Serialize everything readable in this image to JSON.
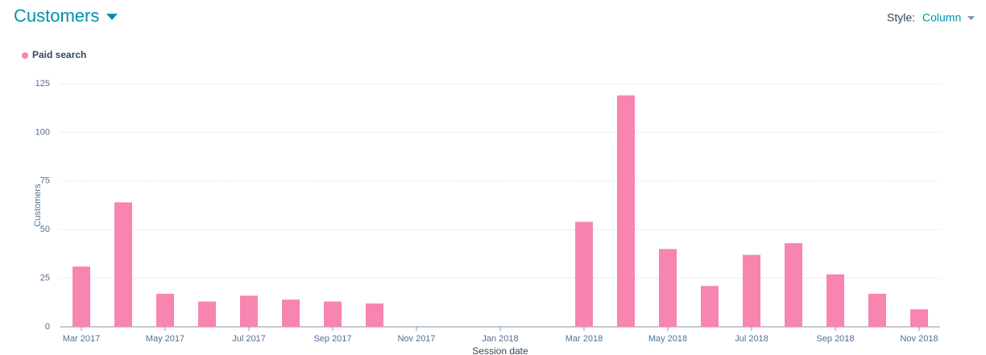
{
  "controls": {
    "style_label": "Style:",
    "style_value": "Column"
  },
  "chart_data": {
    "type": "bar",
    "title": "Customers",
    "x_label": "Session date",
    "y_label": "Customers",
    "categories": [
      "Mar 2017",
      null,
      "May 2017",
      null,
      "Jul 2017",
      null,
      "Sep 2017",
      null,
      "Nov 2017",
      null,
      "Jan 2018",
      null,
      "Mar 2018",
      null,
      "May 2018",
      null,
      "Jul 2018",
      null,
      "Sep 2018",
      null,
      "Nov 2018"
    ],
    "series": [
      {
        "name": "Paid search",
        "color": "#f884b0",
        "values": [
          31,
          64,
          17,
          13,
          16,
          14,
          13,
          12,
          0,
          0,
          0,
          0,
          54,
          119,
          40,
          21,
          37,
          43,
          27,
          17,
          9
        ]
      }
    ],
    "ylim": [
      0,
      125
    ],
    "yticks": [
      0,
      25,
      50,
      75,
      100,
      125
    ],
    "grid": true
  }
}
